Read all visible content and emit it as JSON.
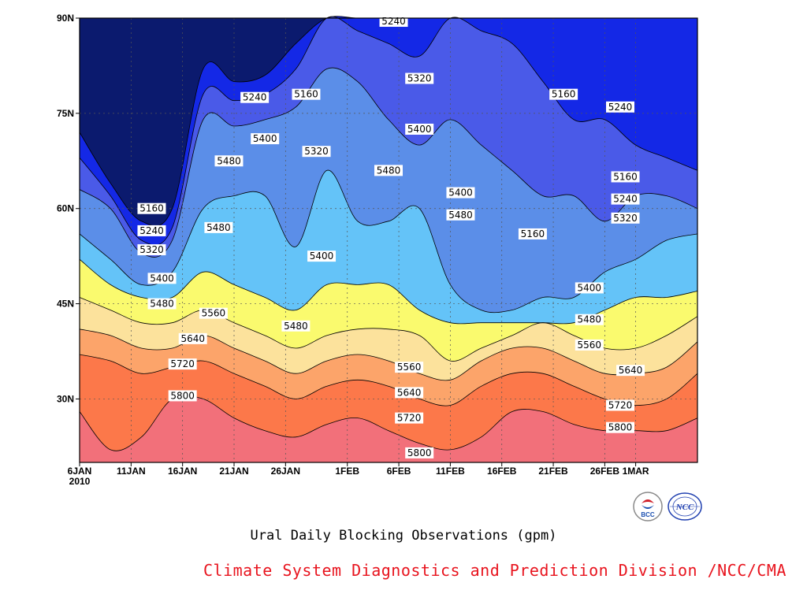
{
  "chart_data": {
    "type": "heatmap",
    "subtype": "filled-contour",
    "title": "",
    "xlabel": "",
    "ylabel": "",
    "x_ticks": [
      "6JAN\n2010",
      "11JAN",
      "16JAN",
      "21JAN",
      "26JAN",
      "1FEB",
      "6FEB",
      "11FEB",
      "16FEB",
      "21FEB",
      "26FEB",
      "1MAR"
    ],
    "x_tick_days": [
      0,
      5,
      10,
      15,
      20,
      26,
      31,
      36,
      41,
      46,
      51,
      54
    ],
    "x_range_days": [
      0,
      60
    ],
    "y_ticks": [
      "30N",
      "45N",
      "60N",
      "75N",
      "90N"
    ],
    "y_tick_values": [
      30,
      45,
      60,
      75,
      90
    ],
    "ylim": [
      20,
      90
    ],
    "grid": true,
    "levels": [
      5160,
      5240,
      5320,
      5400,
      5480,
      5560,
      5640,
      5720,
      5800
    ],
    "colors": [
      "#0b1a6e",
      "#1428e6",
      "#4a5ae8",
      "#5b8ee8",
      "#64c3f8",
      "#fafa6e",
      "#fce29c",
      "#fca46a",
      "#fc784a",
      "#f2707a"
    ],
    "contour_profiles": {
      "comment": "latitude (deg N) of each contour level sampled at days 0,3,6,...,60",
      "5160": [
        72,
        64,
        58,
        60,
        82,
        80,
        81,
        86,
        90,
        90,
        90,
        90,
        90,
        90,
        90,
        90,
        90,
        90,
        90,
        90,
        90
      ],
      "5240": [
        68,
        62,
        55,
        57,
        78,
        77,
        78,
        82,
        90,
        88,
        86,
        84,
        90,
        88,
        86,
        80,
        74,
        74,
        70,
        68,
        66
      ],
      "5320": [
        63,
        60,
        53,
        55,
        74,
        73,
        74,
        76,
        82,
        80,
        74,
        70,
        74,
        70,
        66,
        62,
        62,
        58,
        62,
        62,
        60
      ],
      "5400": [
        56,
        52,
        48,
        50,
        60,
        62,
        62,
        54,
        66,
        58,
        58,
        60,
        48,
        44,
        44,
        46,
        46,
        50,
        52,
        55,
        56
      ],
      "5480": [
        52,
        48,
        46,
        46,
        50,
        48,
        46,
        44,
        48,
        48,
        48,
        44,
        42,
        42,
        42,
        42,
        42,
        44,
        46,
        46,
        47
      ],
      "5560": [
        46,
        44,
        42,
        42,
        44,
        42,
        40,
        38,
        40,
        41,
        41,
        40,
        36,
        38,
        40,
        42,
        40,
        38,
        38,
        40,
        43
      ],
      "5640": [
        41,
        40,
        38,
        38,
        40,
        38,
        36,
        34,
        36,
        37,
        36,
        34,
        33,
        36,
        38,
        38,
        36,
        34,
        34,
        35,
        39
      ],
      "5720": [
        37,
        36,
        34,
        35,
        36,
        34,
        32,
        30,
        32,
        33,
        32,
        30,
        29,
        32,
        34,
        34,
        32,
        30,
        29,
        30,
        34
      ],
      "5800": [
        28,
        22,
        24,
        30,
        30,
        27,
        25,
        24,
        26,
        27,
        25,
        23,
        22,
        24,
        28,
        28,
        26,
        25,
        25,
        25,
        27
      ]
    },
    "contour_labels": [
      {
        "text": "5240",
        "day": 30.5,
        "lat": 89.5
      },
      {
        "text": "5320",
        "day": 33,
        "lat": 80.5
      },
      {
        "text": "5160",
        "day": 47,
        "lat": 78
      },
      {
        "text": "5240",
        "day": 52.5,
        "lat": 76
      },
      {
        "text": "5240",
        "day": 17,
        "lat": 77.5
      },
      {
        "text": "5160",
        "day": 22,
        "lat": 78
      },
      {
        "text": "5400",
        "day": 33,
        "lat": 72.5
      },
      {
        "text": "5400",
        "day": 18,
        "lat": 71
      },
      {
        "text": "5320",
        "day": 23,
        "lat": 69
      },
      {
        "text": "5480",
        "day": 14.5,
        "lat": 67.5
      },
      {
        "text": "5480",
        "day": 30,
        "lat": 66
      },
      {
        "text": "5160",
        "day": 53,
        "lat": 65
      },
      {
        "text": "5400",
        "day": 37,
        "lat": 62.5
      },
      {
        "text": "5240",
        "day": 53,
        "lat": 61.5
      },
      {
        "text": "5160",
        "day": 7,
        "lat": 60
      },
      {
        "text": "5480",
        "day": 37,
        "lat": 59
      },
      {
        "text": "5320",
        "day": 53,
        "lat": 58.5
      },
      {
        "text": "5480",
        "day": 13.5,
        "lat": 57
      },
      {
        "text": "5240",
        "day": 7,
        "lat": 56.5
      },
      {
        "text": "5160",
        "day": 44,
        "lat": 56
      },
      {
        "text": "5320",
        "day": 7,
        "lat": 53.5
      },
      {
        "text": "5400",
        "day": 23.5,
        "lat": 52.5
      },
      {
        "text": "5400",
        "day": 8,
        "lat": 49
      },
      {
        "text": "5400",
        "day": 49.5,
        "lat": 47.5
      },
      {
        "text": "5480",
        "day": 8,
        "lat": 45
      },
      {
        "text": "5560",
        "day": 13,
        "lat": 43.5
      },
      {
        "text": "5480",
        "day": 21,
        "lat": 41.5
      },
      {
        "text": "5480",
        "day": 49.5,
        "lat": 42.5
      },
      {
        "text": "5640",
        "day": 11,
        "lat": 39.5
      },
      {
        "text": "5560",
        "day": 49.5,
        "lat": 38.5
      },
      {
        "text": "5720",
        "day": 10,
        "lat": 35.5
      },
      {
        "text": "5560",
        "day": 32,
        "lat": 35
      },
      {
        "text": "5640",
        "day": 53.5,
        "lat": 34.5
      },
      {
        "text": "5800",
        "day": 10,
        "lat": 30.5
      },
      {
        "text": "5640",
        "day": 32,
        "lat": 31
      },
      {
        "text": "5720",
        "day": 52.5,
        "lat": 29
      },
      {
        "text": "5720",
        "day": 32,
        "lat": 27
      },
      {
        "text": "5800",
        "day": 52.5,
        "lat": 25.5
      },
      {
        "text": "5800",
        "day": 33,
        "lat": 21.5
      }
    ]
  },
  "caption": "Ural Daily Blocking Observations (gpm)",
  "credit": "Climate System Diagnostics and Prediction Division /NCC/CMA",
  "logos": {
    "left_text": "BCC",
    "right_text": "NCC"
  }
}
